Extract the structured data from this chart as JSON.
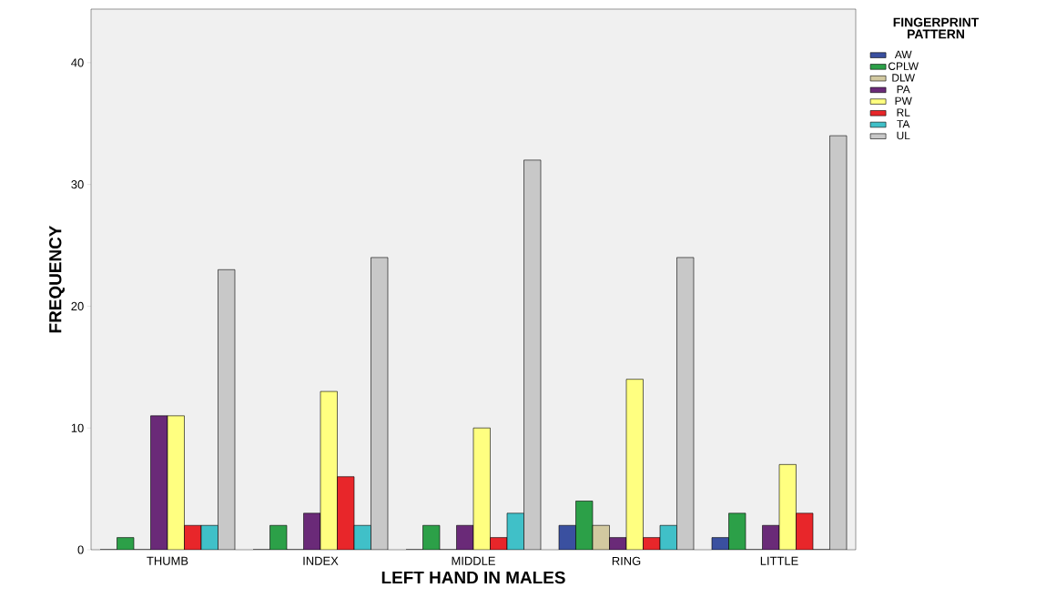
{
  "chart_data": {
    "type": "bar",
    "xlabel": "LEFT HAND IN MALES",
    "ylabel": "FREQUENCY",
    "legend_title": "FINGERPRINT PATTERN",
    "categories": [
      "THUMB",
      "INDEX",
      "MIDDLE",
      "RING",
      "LITTLE"
    ],
    "series": [
      {
        "name": "AW",
        "color": "#3a50a0",
        "values": [
          0,
          0,
          0,
          2,
          1
        ]
      },
      {
        "name": "CPLW",
        "color": "#2ca048",
        "values": [
          1,
          2,
          2,
          4,
          3
        ]
      },
      {
        "name": "DLW",
        "color": "#d2c9a0",
        "values": [
          0,
          0,
          0,
          2,
          0
        ]
      },
      {
        "name": "PA",
        "color": "#6a2a78",
        "values": [
          11,
          3,
          2,
          1,
          2
        ]
      },
      {
        "name": "PW",
        "color": "#ffff80",
        "values": [
          11,
          13,
          10,
          14,
          7
        ]
      },
      {
        "name": "RL",
        "color": "#e8262a",
        "values": [
          2,
          6,
          1,
          1,
          3
        ]
      },
      {
        "name": "TA",
        "color": "#40c0c8",
        "values": [
          2,
          2,
          3,
          2,
          0
        ]
      },
      {
        "name": "UL",
        "color": "#c8c8c8",
        "values": [
          23,
          24,
          32,
          24,
          34
        ]
      }
    ],
    "ylim": [
      0,
      44.4
    ],
    "yticks": [
      0,
      10,
      20,
      30,
      40
    ],
    "legend": "right"
  }
}
